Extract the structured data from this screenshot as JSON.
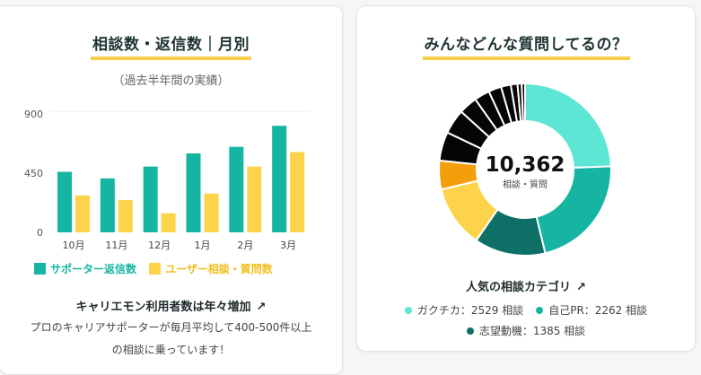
{
  "left": {
    "title": "相談数・返信数｜月別",
    "subtitle": "（過去半年間の実績）",
    "legend": [
      "サポーター返信数",
      "ユーザー相談・質問数"
    ],
    "headline": "キャリエモン利用者数は年々増加",
    "body_line1": "プロのキャリアサポーターが毎月平均して400-500件以上",
    "body_line2": "の相談に乗っています！",
    "trend_icon": "trending-up-icon"
  },
  "right": {
    "title": "みんなどんな質問してるの？",
    "heading": "人気の相談カテゴリ",
    "trend_icon": "trending-up-icon",
    "categories": [
      {
        "label": "ガクチカ：2529 相談",
        "color": "#5ee6d4"
      },
      {
        "label": "自己PR：2262 相談",
        "color": "#16b5a2"
      },
      {
        "label": "志望動機：1385 相談",
        "color": "#0e6f66"
      }
    ]
  },
  "colors": {
    "teal": "#16b5a2",
    "yellow": "#fcd34a",
    "mint": "#5ee6d4",
    "dark_teal": "#0e6f66",
    "orange": "#f59e0b",
    "black": "#050505"
  },
  "chart_data": [
    {
      "type": "bar",
      "categories": [
        "10月",
        "11月",
        "12月",
        "1月",
        "2月",
        "3月"
      ],
      "yticks": [
        "0",
        "450",
        "900"
      ],
      "ylim": [
        0,
        900
      ],
      "series": [
        {
          "name": "サポーター返信数",
          "values": [
            460,
            410,
            500,
            600,
            650,
            810
          ],
          "color": "#16b5a2"
        },
        {
          "name": "ユーザー相談・質問数",
          "values": [
            280,
            245,
            145,
            295,
            500,
            610
          ],
          "color": "#fcd34a"
        }
      ],
      "grid": false,
      "legend": "bottom-left"
    },
    {
      "type": "pie",
      "donut": true,
      "total_label": "10,362",
      "center_label": "相談・質問",
      "slices": [
        {
          "value": 2529,
          "color": "#5ee6d4"
        },
        {
          "value": 2262,
          "color": "#16b5a2"
        },
        {
          "value": 1385,
          "color": "#0e6f66"
        },
        {
          "value": 1210,
          "color": "#fcd34a"
        },
        {
          "value": 560,
          "color": "#f59e0b"
        },
        {
          "value": 560,
          "color": "#050505"
        },
        {
          "value": 480,
          "color": "#050505"
        },
        {
          "value": 360,
          "color": "#050505"
        },
        {
          "value": 300,
          "color": "#050505"
        },
        {
          "value": 250,
          "color": "#050505"
        },
        {
          "value": 190,
          "color": "#050505"
        },
        {
          "value": 130,
          "color": "#050505"
        },
        {
          "value": 80,
          "color": "#050505"
        },
        {
          "value": 66,
          "color": "#050505"
        }
      ]
    }
  ]
}
